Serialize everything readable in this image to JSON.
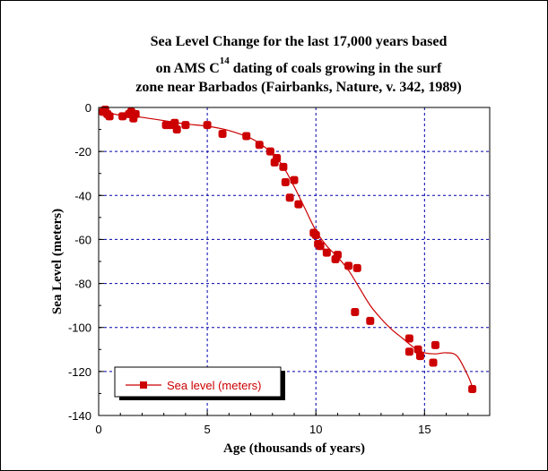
{
  "chart_data": {
    "type": "scatter",
    "title_line1_prefix": "Sea Level Change for the last 17,000 years based",
    "title_line2_prefix": "on AMS C",
    "title_line2_sup": "14",
    "title_line2_suffix": " dating of coals growing in the surf",
    "title_line3": "zone near Barbados (Fairbanks, Nature, v. 342, 1989)",
    "xlabel": "Age (thousands of years)",
    "ylabel": "Sea Level (meters)",
    "xlim": [
      0,
      18
    ],
    "ylim": [
      -140,
      0
    ],
    "xticks": [
      0,
      5,
      10,
      15
    ],
    "yticks": [
      0,
      -20,
      -40,
      -60,
      -80,
      -100,
      -120,
      -140
    ],
    "grid": true,
    "legend_position": "bottom-left",
    "colors": {
      "series": "#cc0000",
      "grid": "#0000aa",
      "axes": "#000000"
    },
    "series": [
      {
        "name": "Sea level (meters)",
        "points": [
          [
            0.2,
            -2
          ],
          [
            0.3,
            -1
          ],
          [
            0.4,
            -3
          ],
          [
            0.5,
            -4
          ],
          [
            1.1,
            -4
          ],
          [
            1.4,
            -3
          ],
          [
            1.5,
            -2
          ],
          [
            1.6,
            -5
          ],
          [
            1.7,
            -3
          ],
          [
            3.1,
            -8
          ],
          [
            3.3,
            -8
          ],
          [
            3.5,
            -7
          ],
          [
            3.6,
            -10
          ],
          [
            4.0,
            -8
          ],
          [
            5.0,
            -8
          ],
          [
            5.7,
            -12
          ],
          [
            6.8,
            -13
          ],
          [
            7.4,
            -17
          ],
          [
            7.9,
            -20
          ],
          [
            8.1,
            -25
          ],
          [
            8.2,
            -23
          ],
          [
            8.5,
            -27
          ],
          [
            8.6,
            -34
          ],
          [
            8.8,
            -41
          ],
          [
            9.0,
            -33
          ],
          [
            9.2,
            -44
          ],
          [
            9.9,
            -57
          ],
          [
            10.0,
            -58
          ],
          [
            10.1,
            -62
          ],
          [
            10.2,
            -63
          ],
          [
            10.5,
            -66
          ],
          [
            10.9,
            -69
          ],
          [
            11.0,
            -67
          ],
          [
            11.5,
            -72
          ],
          [
            11.9,
            -73
          ],
          [
            11.8,
            -93
          ],
          [
            12.5,
            -97
          ],
          [
            14.3,
            -105
          ],
          [
            14.3,
            -111
          ],
          [
            14.7,
            -110
          ],
          [
            14.8,
            -113
          ],
          [
            15.5,
            -108
          ],
          [
            15.4,
            -116
          ],
          [
            17.2,
            -128
          ]
        ],
        "curve": [
          [
            0,
            -1
          ],
          [
            0.5,
            -2.5
          ],
          [
            1,
            -3.5
          ],
          [
            2,
            -4.5
          ],
          [
            3,
            -6
          ],
          [
            4,
            -7.5
          ],
          [
            5,
            -8.5
          ],
          [
            6,
            -10.5
          ],
          [
            7,
            -14
          ],
          [
            7.5,
            -17
          ],
          [
            8,
            -21
          ],
          [
            8.5,
            -27
          ],
          [
            9,
            -36
          ],
          [
            9.5,
            -46
          ],
          [
            10,
            -56
          ],
          [
            10.5,
            -63
          ],
          [
            11,
            -68
          ],
          [
            11.5,
            -74
          ],
          [
            12,
            -82
          ],
          [
            12.5,
            -90
          ],
          [
            13,
            -96
          ],
          [
            13.5,
            -101
          ],
          [
            14,
            -105
          ],
          [
            14.5,
            -109
          ],
          [
            15,
            -111.5
          ],
          [
            15.5,
            -112
          ],
          [
            16,
            -111.5
          ],
          [
            16.5,
            -113
          ],
          [
            17,
            -122
          ],
          [
            17.2,
            -127
          ]
        ]
      }
    ]
  }
}
